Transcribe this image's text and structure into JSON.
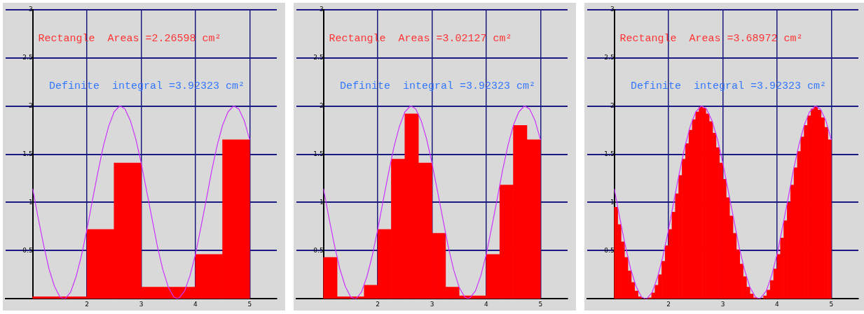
{
  "chart_data": [
    {
      "type": "histogram",
      "color": "#ff0000",
      "bins": [
        1,
        1.5,
        2,
        2.5,
        3,
        3.5,
        4,
        4.5,
        5
      ],
      "values": [
        0.02,
        0.02,
        0.72,
        1.41,
        0.12,
        0.12,
        0.46,
        1.65
      ],
      "series": [
        {
          "type": "line",
          "color": "#cc33ff",
          "x": [
            1,
            1.1,
            1.2,
            1.3,
            1.4,
            1.5,
            1.571,
            1.6,
            1.7,
            1.8,
            1.9,
            2,
            2.1,
            2.2,
            2.3,
            2.4,
            2.5,
            2.6,
            2.618,
            2.7,
            2.8,
            2.9,
            3,
            3.1,
            3.2,
            3.3,
            3.4,
            3.5,
            3.6,
            3.665,
            3.7,
            3.8,
            3.9,
            4,
            4.1,
            4.2,
            4.3,
            4.4,
            4.5,
            4.6,
            4.7,
            4.712,
            4.8,
            4.9,
            5
          ],
          "values": [
            1.14,
            0.84,
            0.56,
            0.31,
            0.13,
            0.02,
            0,
            0,
            0.07,
            0.23,
            0.45,
            0.72,
            1.02,
            1.31,
            1.58,
            1.79,
            1.94,
            2.0,
            2,
            1.97,
            1.85,
            1.66,
            1.41,
            1.12,
            0.83,
            0.54,
            0.3,
            0.12,
            0.02,
            0,
            0.01,
            0.08,
            0.24,
            0.46,
            0.74,
            1.03,
            1.33,
            1.59,
            1.8,
            1.94,
            2.0,
            2,
            1.97,
            1.85,
            1.65
          ]
        }
      ],
      "xlim": [
        0.5,
        5.5
      ],
      "xticks": [
        2,
        3,
        4,
        5
      ],
      "ylim": [
        0,
        3
      ],
      "yticks": [
        0.5,
        1,
        1.5,
        2,
        2.5,
        3
      ],
      "grid": true,
      "annotations": [
        "Rectangle  Areas =2.26598 cm²",
        "Definite  integral =3.92323 cm²"
      ]
    },
    {
      "type": "histogram",
      "color": "#ff0000",
      "bins": [
        1,
        1.25,
        1.5,
        1.75,
        2,
        2.25,
        2.5,
        2.75,
        3,
        3.25,
        3.5,
        3.75,
        4,
        4.25,
        4.5,
        4.75,
        5
      ],
      "values": [
        0.43,
        0.02,
        0.02,
        0.14,
        0.72,
        1.45,
        1.92,
        1.41,
        0.68,
        0.12,
        0.03,
        0.03,
        0.46,
        1.18,
        1.8,
        1.65
      ],
      "series": [
        {
          "type": "line",
          "color": "#cc33ff",
          "x": [
            1,
            1.1,
            1.2,
            1.3,
            1.4,
            1.5,
            1.571,
            1.6,
            1.7,
            1.8,
            1.9,
            2,
            2.1,
            2.2,
            2.3,
            2.4,
            2.5,
            2.6,
            2.618,
            2.7,
            2.8,
            2.9,
            3,
            3.1,
            3.2,
            3.3,
            3.4,
            3.5,
            3.6,
            3.665,
            3.7,
            3.8,
            3.9,
            4,
            4.1,
            4.2,
            4.3,
            4.4,
            4.5,
            4.6,
            4.7,
            4.712,
            4.8,
            4.9,
            5
          ],
          "values": [
            1.14,
            0.84,
            0.56,
            0.31,
            0.13,
            0.02,
            0,
            0,
            0.07,
            0.23,
            0.45,
            0.72,
            1.02,
            1.31,
            1.58,
            1.79,
            1.94,
            2.0,
            2,
            1.97,
            1.85,
            1.66,
            1.41,
            1.12,
            0.83,
            0.54,
            0.3,
            0.12,
            0.02,
            0,
            0.01,
            0.08,
            0.24,
            0.46,
            0.74,
            1.03,
            1.33,
            1.59,
            1.8,
            1.94,
            2.0,
            2,
            1.97,
            1.85,
            1.65
          ]
        }
      ],
      "xlim": [
        0.5,
        5.5
      ],
      "xticks": [
        2,
        3,
        4,
        5
      ],
      "ylim": [
        0,
        3
      ],
      "yticks": [
        0.5,
        1,
        1.5,
        2,
        2.5,
        3
      ],
      "grid": true,
      "annotations": [
        "Rectangle  Areas =3.02127 cm²",
        "Definite  integral =3.92323 cm²"
      ]
    },
    {
      "type": "histogram",
      "color": "#ff0000",
      "bins": [
        1,
        1.0625,
        1.125,
        1.1875,
        1.25,
        1.3125,
        1.375,
        1.4375,
        1.5,
        1.5625,
        1.625,
        1.6875,
        1.75,
        1.8125,
        1.875,
        1.9375,
        2,
        2.0625,
        2.125,
        2.1875,
        2.25,
        2.3125,
        2.375,
        2.4375,
        2.5,
        2.5625,
        2.625,
        2.6875,
        2.75,
        2.8125,
        2.875,
        2.9375,
        3,
        3.0625,
        3.125,
        3.1875,
        3.25,
        3.3125,
        3.375,
        3.4375,
        3.5,
        3.5625,
        3.625,
        3.6875,
        3.75,
        3.8125,
        3.875,
        3.9375,
        4,
        4.0625,
        4.125,
        4.1875,
        4.25,
        4.3125,
        4.375,
        4.4375,
        4.5,
        4.5625,
        4.625,
        4.6875,
        4.75,
        4.8125,
        4.875,
        4.9375,
        5
      ],
      "values": [
        0.95,
        0.77,
        0.59,
        0.43,
        0.29,
        0.17,
        0.08,
        0.02,
        0,
        0,
        0.01,
        0.06,
        0.14,
        0.25,
        0.39,
        0.55,
        0.72,
        0.9,
        1.09,
        1.28,
        1.45,
        1.61,
        1.75,
        1.86,
        1.94,
        1.99,
        1.98,
        1.92,
        1.84,
        1.72,
        1.57,
        1.41,
        1.24,
        1.05,
        0.86,
        0.68,
        0.51,
        0.36,
        0.23,
        0.12,
        0.05,
        0.01,
        0,
        0,
        0.03,
        0.09,
        0.19,
        0.31,
        0.46,
        0.63,
        0.81,
        1.0,
        1.18,
        1.36,
        1.53,
        1.68,
        1.8,
        1.9,
        1.97,
        1.99,
        1.96,
        1.88,
        1.78,
        1.65
      ],
      "series": [
        {
          "type": "line",
          "color": "#cc33ff",
          "x": [
            1,
            1.1,
            1.2,
            1.3,
            1.4,
            1.5,
            1.571,
            1.6,
            1.7,
            1.8,
            1.9,
            2,
            2.1,
            2.2,
            2.3,
            2.4,
            2.5,
            2.6,
            2.618,
            2.7,
            2.8,
            2.9,
            3,
            3.1,
            3.2,
            3.3,
            3.4,
            3.5,
            3.6,
            3.665,
            3.7,
            3.8,
            3.9,
            4,
            4.1,
            4.2,
            4.3,
            4.4,
            4.5,
            4.6,
            4.7,
            4.712,
            4.8,
            4.9,
            5
          ],
          "values": [
            1.14,
            0.84,
            0.56,
            0.31,
            0.13,
            0.02,
            0,
            0,
            0.07,
            0.23,
            0.45,
            0.72,
            1.02,
            1.31,
            1.58,
            1.79,
            1.94,
            2.0,
            2,
            1.97,
            1.85,
            1.66,
            1.41,
            1.12,
            0.83,
            0.54,
            0.3,
            0.12,
            0.02,
            0,
            0.01,
            0.08,
            0.24,
            0.46,
            0.74,
            1.03,
            1.33,
            1.59,
            1.8,
            1.94,
            2.0,
            2,
            1.97,
            1.85,
            1.65
          ]
        }
      ],
      "xlim": [
        0.5,
        5.5
      ],
      "xticks": [
        2,
        3,
        4,
        5
      ],
      "ylim": [
        0,
        3
      ],
      "yticks": [
        0.5,
        1,
        1.5,
        2,
        2.5,
        3
      ],
      "grid": true,
      "annotations": [
        "Rectangle  Areas =3.68972 cm²",
        "Definite  integral =3.92323 cm²"
      ]
    }
  ]
}
